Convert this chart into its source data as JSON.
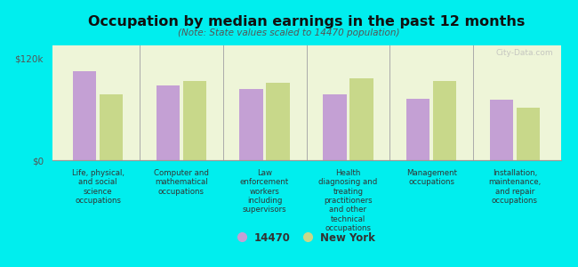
{
  "title": "Occupation by median earnings in the past 12 months",
  "subtitle": "(Note: State values scaled to 14470 population)",
  "categories": [
    "Life, physical,\nand social\nscience\noccupations",
    "Computer and\nmathematical\noccupations",
    "Law\nenforcement\nworkers\nincluding\nsupervisors",
    "Health\ndiagnosing and\ntreating\npractitioners\nand other\ntechnical\noccupations",
    "Management\noccupations",
    "Installation,\nmaintenance,\nand repair\noccupations"
  ],
  "values_14470": [
    105000,
    88000,
    84000,
    77000,
    72000,
    71000
  ],
  "values_ny": [
    77000,
    93000,
    91000,
    96000,
    93000,
    62000
  ],
  "ylim": [
    0,
    135000
  ],
  "ytick_vals": [
    0,
    120000
  ],
  "ytick_labels": [
    "$0",
    "$120k"
  ],
  "color_14470": "#c4a0d4",
  "color_ny": "#c8d88a",
  "background_color": "#00eeee",
  "plot_bg_color": "#eef5d8",
  "legend_labels": [
    "14470",
    "New York"
  ],
  "watermark": "City-Data.com"
}
